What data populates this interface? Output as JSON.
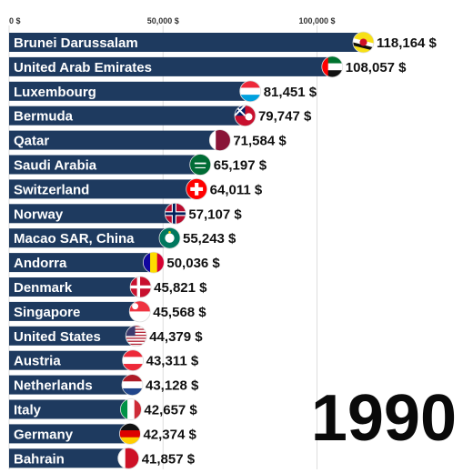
{
  "chart_data": {
    "type": "bar",
    "orientation": "horizontal",
    "year": "1990",
    "currency_suffix": " $",
    "xlim": [
      0,
      120000
    ],
    "x_ticks": [
      {
        "value": 0,
        "label": "0 $"
      },
      {
        "value": 50000,
        "label": "50,000 $"
      },
      {
        "value": 100000,
        "label": "100,000 $"
      }
    ],
    "grid": true,
    "bar_color": "#1e3a5f",
    "categories": [
      "Brunei Darussalam",
      "United Arab Emirates",
      "Luxembourg",
      "Bermuda",
      "Qatar",
      "Saudi Arabia",
      "Switzerland",
      "Norway",
      "Macao SAR, China",
      "Andorra",
      "Denmark",
      "Singapore",
      "United States",
      "Austria",
      "Netherlands",
      "Italy",
      "Germany",
      "Bahrain"
    ],
    "values": [
      118164,
      108057,
      81451,
      79747,
      71584,
      65197,
      64011,
      57107,
      55243,
      50036,
      45821,
      45568,
      44379,
      43311,
      43128,
      42657,
      42374,
      41857
    ],
    "value_labels": [
      "118,164 $",
      "108,057 $",
      "81,451 $",
      "79,747 $",
      "71,584 $",
      "65,197 $",
      "64,011 $",
      "57,107 $",
      "55,243 $",
      "50,036 $",
      "45,821 $",
      "45,568 $",
      "44,379 $",
      "43,311 $",
      "43,128 $",
      "42,657 $",
      "42,374 $",
      "41,857 $"
    ],
    "flag_icons": [
      "brunei-flag-icon",
      "uae-flag-icon",
      "luxembourg-flag-icon",
      "bermuda-flag-icon",
      "qatar-flag-icon",
      "saudi-arabia-flag-icon",
      "switzerland-flag-icon",
      "norway-flag-icon",
      "macao-flag-icon",
      "andorra-flag-icon",
      "denmark-flag-icon",
      "singapore-flag-icon",
      "united-states-flag-icon",
      "austria-flag-icon",
      "netherlands-flag-icon",
      "italy-flag-icon",
      "germany-flag-icon",
      "bahrain-flag-icon"
    ]
  },
  "watermark": "",
  "colors": {
    "bar": "#1e3a5f",
    "grid": "#dddddd",
    "text": "#111111"
  }
}
